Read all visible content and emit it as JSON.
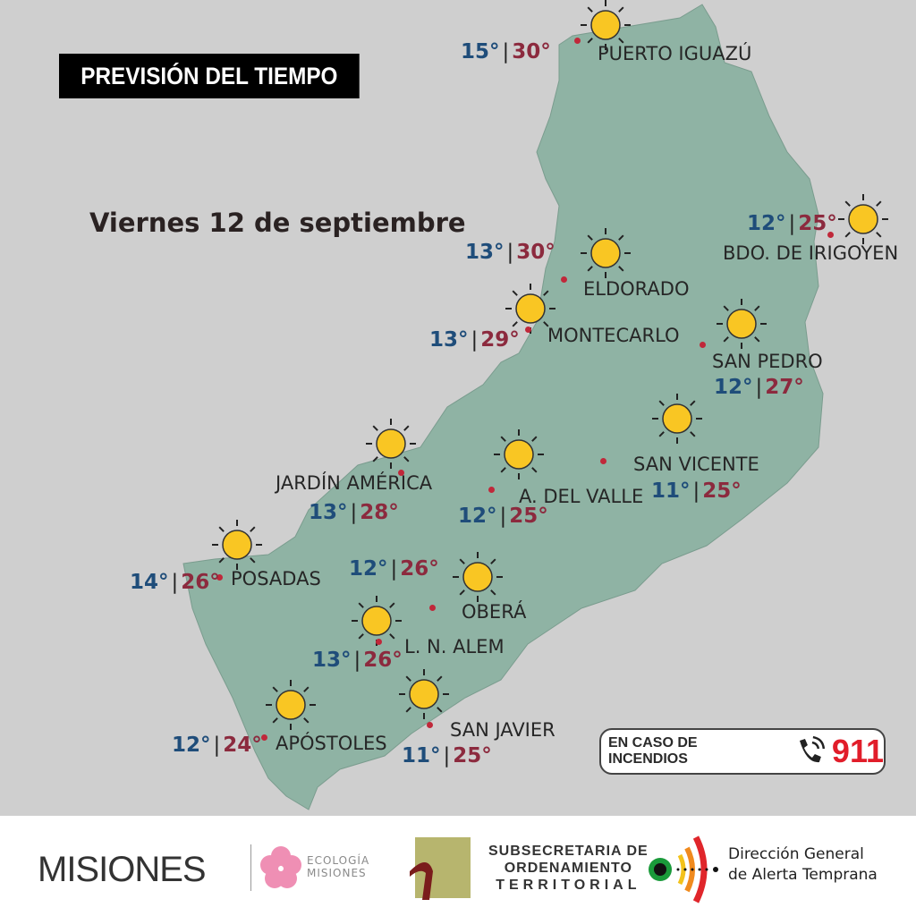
{
  "header": {
    "title": "PREVISIÓN DEL TIEMPO",
    "date": "Viernes 12 de septiembre"
  },
  "colors": {
    "land": "#8fb3a4",
    "background": "#cfcfcf",
    "min_temp": "#1f4d7a",
    "max_temp": "#8c2a3e",
    "sun": "#f9c623",
    "city_dot": "#c0283a"
  },
  "weather_icon": "sun-icon",
  "cities": [
    {
      "name": "PUERTO IGUAZÚ",
      "min": "15°",
      "max": "30°"
    },
    {
      "name": "BDO. DE IRIGOYEN",
      "min": "12°",
      "max": "25°"
    },
    {
      "name": "ELDORADO",
      "min": "13°",
      "max": "30°"
    },
    {
      "name": "MONTECARLO",
      "min": "13°",
      "max": "29°"
    },
    {
      "name": "SAN PEDRO",
      "min": "12°",
      "max": "27°"
    },
    {
      "name": "SAN VICENTE",
      "min": "11°",
      "max": "25°"
    },
    {
      "name": "A. DEL VALLE",
      "min": "12°",
      "max": "25°"
    },
    {
      "name": "JARDÍN AMÉRICA",
      "min": "13°",
      "max": "28°"
    },
    {
      "name": "POSADAS",
      "min": "14°",
      "max": "26°"
    },
    {
      "name": "OBERÁ",
      "min": "12°",
      "max": "26°"
    },
    {
      "name": "L. N. ALEM",
      "min": "13°",
      "max": "26°"
    },
    {
      "name": "APÓSTOLES",
      "min": "12°",
      "max": "24°"
    },
    {
      "name": "SAN JAVIER",
      "min": "11°",
      "max": "25°"
    }
  ],
  "emergency": {
    "label": "EN CASO DE INCENDIOS",
    "number": "911",
    "icon": "phone-icon"
  },
  "footer": {
    "logo_misiones": "MISIONES",
    "logo_ecologia": [
      "ECOLOGÍA",
      "MISIONES"
    ],
    "subsecretaria": [
      "SUBSECRETARIA DE",
      "ORDENAMIENTO",
      "TERRITORIAL"
    ],
    "direccion": [
      "Dirección General",
      "de Alerta Temprana"
    ]
  }
}
